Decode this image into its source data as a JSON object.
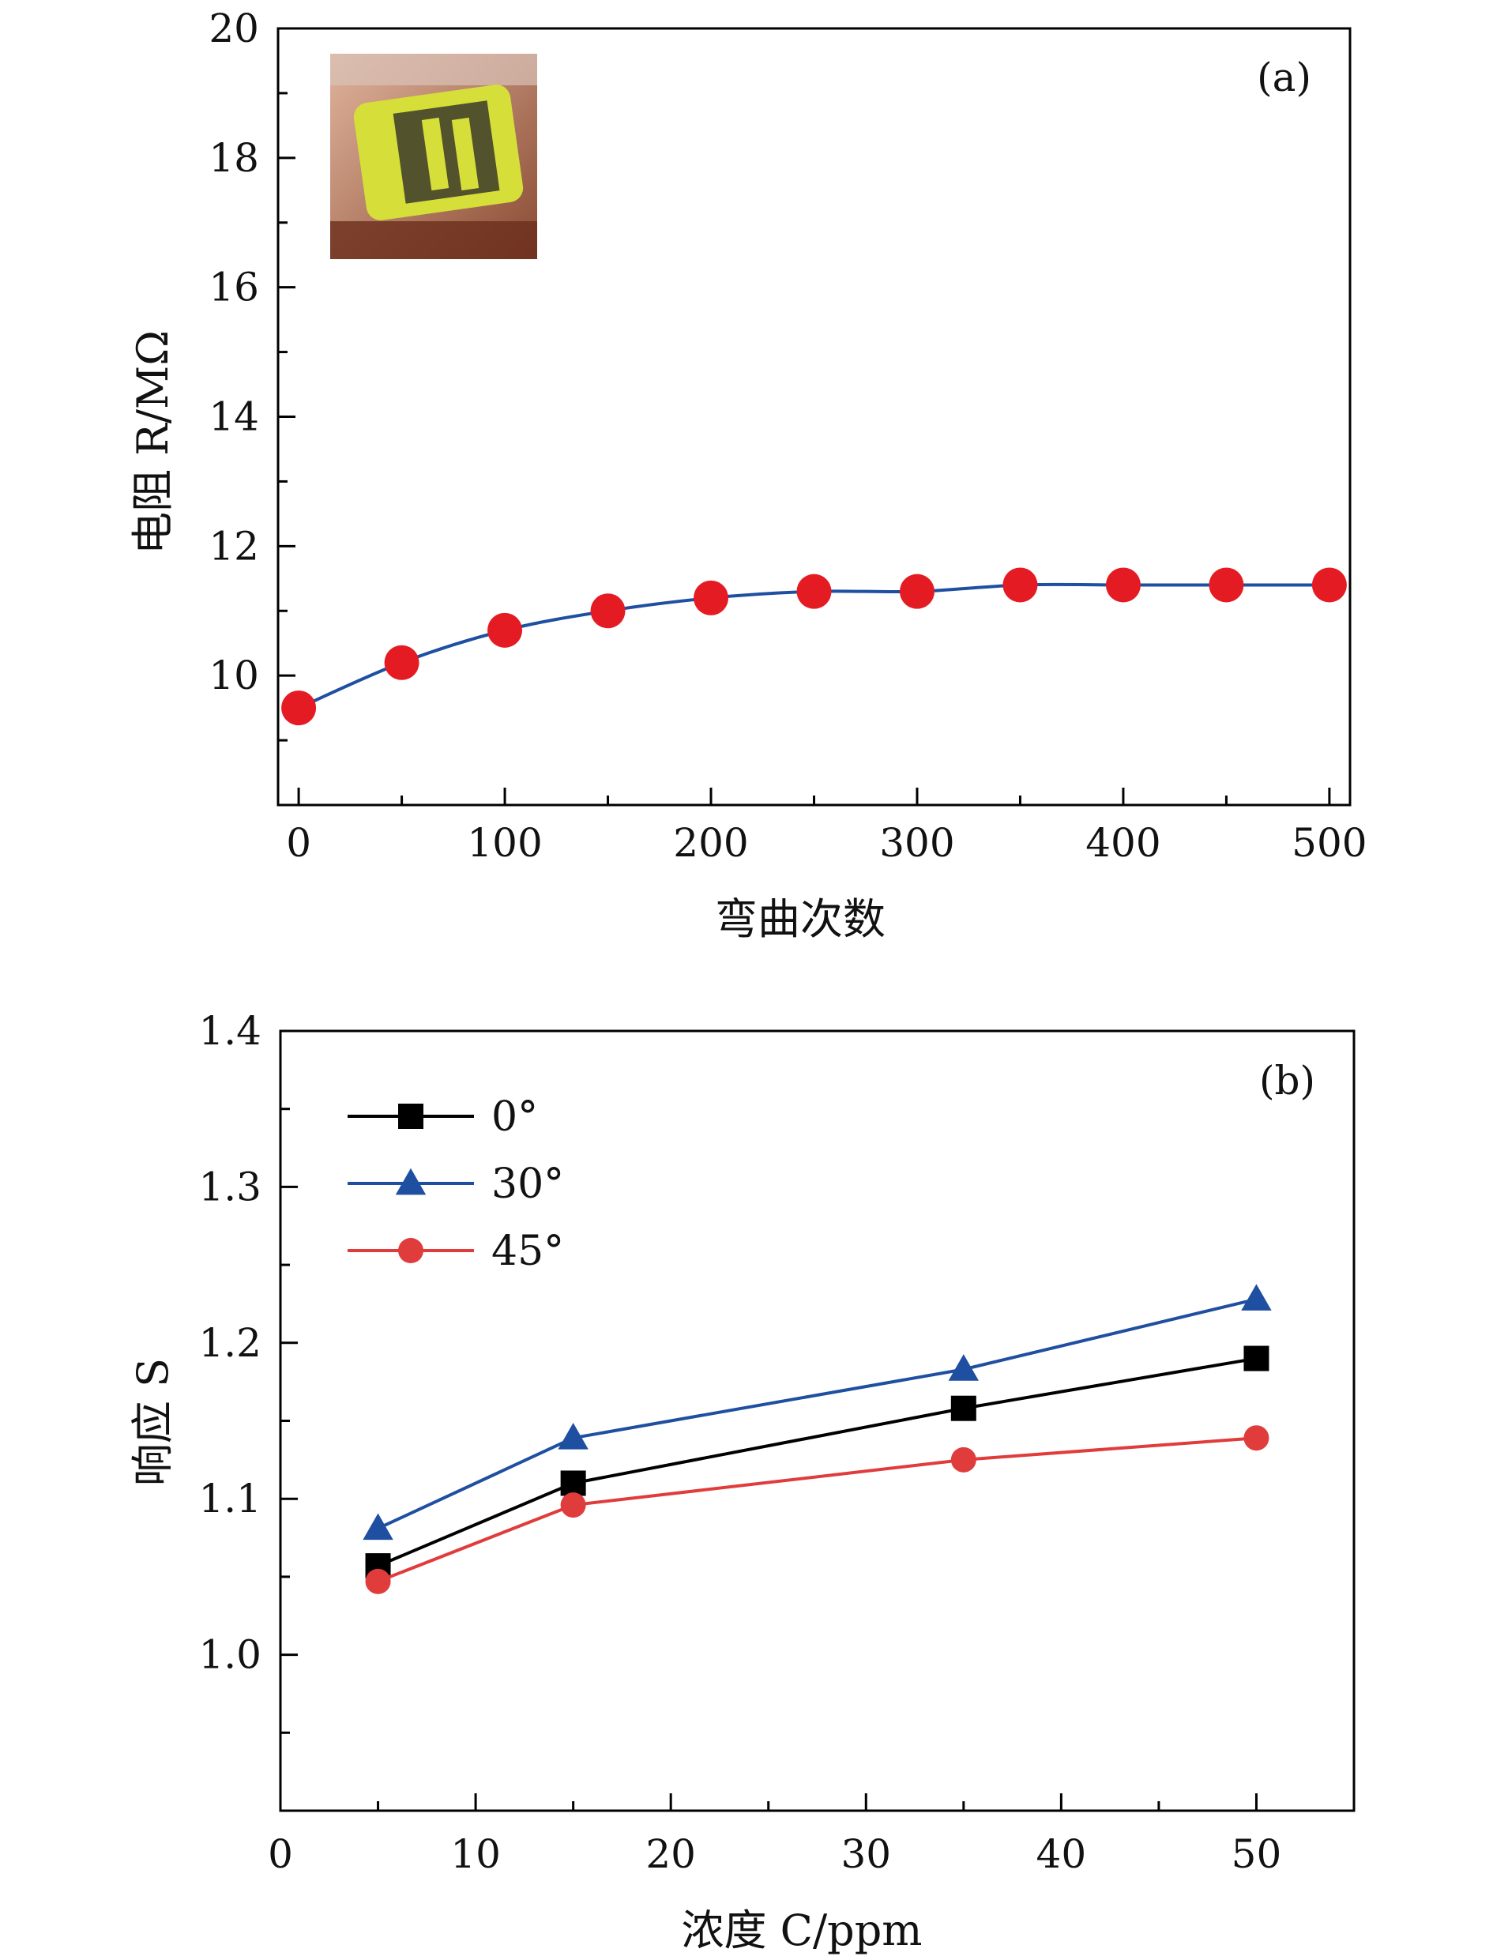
{
  "chart_data": [
    {
      "type": "line",
      "panel_label": "(a)",
      "xlabel": "弯曲次数",
      "ylabel": "电阻 R/MΩ",
      "xlim": [
        -10,
        510
      ],
      "ylim": [
        8.0,
        20.0
      ],
      "xticks": [
        0,
        100,
        200,
        300,
        400,
        500
      ],
      "yticks": [
        10,
        12,
        14,
        16,
        18,
        20
      ],
      "grid": false,
      "inset": "photo of bent flexible sensor strip",
      "series": [
        {
          "color": "#1f4fa0",
          "marker": "circle",
          "marker_color": "#e51b24",
          "x": [
            0,
            50,
            100,
            150,
            200,
            250,
            300,
            350,
            400,
            450,
            500
          ],
          "y": [
            9.5,
            10.2,
            10.7,
            11.0,
            11.2,
            11.3,
            11.3,
            11.4,
            11.4,
            11.4,
            11.4
          ]
        }
      ]
    },
    {
      "type": "line",
      "panel_label": "(b)",
      "xlabel": "浓度 C/ppm",
      "ylabel": "响应 S",
      "xlim": [
        0,
        55
      ],
      "ylim": [
        0.9,
        1.4
      ],
      "xticks": [
        0,
        10,
        20,
        30,
        40,
        50
      ],
      "yticks": [
        1.0,
        1.1,
        1.2,
        1.3,
        1.4
      ],
      "grid": false,
      "legend_position": "top-left",
      "series": [
        {
          "name": "0°",
          "color": "#000000",
          "marker": "square",
          "x": [
            5,
            15,
            35,
            50
          ],
          "y": [
            1.057,
            1.11,
            1.158,
            1.19
          ]
        },
        {
          "name": "30°",
          "color": "#1f4fa0",
          "marker": "triangle",
          "x": [
            5,
            15,
            35,
            50
          ],
          "y": [
            1.081,
            1.139,
            1.183,
            1.228
          ]
        },
        {
          "name": "45°",
          "color": "#e03c3c",
          "marker": "circle",
          "x": [
            5,
            15,
            35,
            50
          ],
          "y": [
            1.047,
            1.096,
            1.125,
            1.139
          ]
        }
      ]
    }
  ]
}
